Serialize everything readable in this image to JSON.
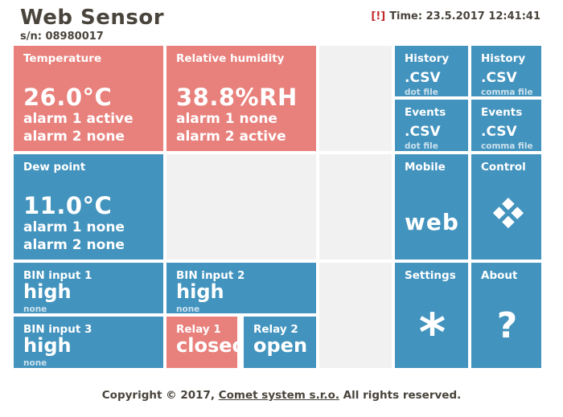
{
  "header": {
    "title": "Web Sensor",
    "serial": "s/n: 08980017",
    "alert_marker": "[!]",
    "time_text": "Time: 23.5.2017 12:41:41"
  },
  "colors": {
    "tile_red": "#e8807c",
    "tile_blue": "#4293be",
    "tile_gray": "#f1f1f1",
    "text_dark": "#49443c",
    "alert_red": "#c2272b",
    "tile_text": "#ffffff"
  },
  "tiles": {
    "temperature": {
      "label": "Temperature",
      "value": "26.0°C",
      "alarm1": "alarm 1 active",
      "alarm2": "alarm 2 none"
    },
    "humidity": {
      "label": "Relative humidity",
      "value": "38.8%RH",
      "alarm1": "alarm 1 none",
      "alarm2": "alarm 2 active"
    },
    "dew_point": {
      "label": "Dew point",
      "value": "11.0°C",
      "alarm1": "alarm 1 none",
      "alarm2": "alarm 2 none"
    },
    "history_dot": {
      "label": "History",
      "value": ".CSV",
      "sub": "dot file"
    },
    "history_comma": {
      "label": "History",
      "value": ".CSV",
      "sub": "comma file"
    },
    "events_dot": {
      "label": "Events",
      "value": ".CSV",
      "sub": "dot file"
    },
    "events_comma": {
      "label": "Events",
      "value": ".CSV",
      "sub": "comma file"
    },
    "mobile": {
      "label": "Mobile",
      "value": "web"
    },
    "control": {
      "label": "Control",
      "icon": "diamond-icon"
    },
    "bin1": {
      "label": "BIN input 1",
      "value": "high",
      "sub": "none"
    },
    "bin2": {
      "label": "BIN input 2",
      "value": "high",
      "sub": "none"
    },
    "bin3": {
      "label": "BIN input 3",
      "value": "high",
      "sub": "none"
    },
    "relay1": {
      "label": "Relay 1",
      "value": "closed"
    },
    "relay2": {
      "label": "Relay 2",
      "value": "open"
    },
    "settings": {
      "label": "Settings",
      "icon_glyph": "*"
    },
    "about": {
      "label": "About",
      "icon_glyph": "?"
    }
  },
  "footer": {
    "prefix": "Copyright © 2017, ",
    "link": "Comet system s.r.o.",
    "suffix": " All rights reserved."
  }
}
